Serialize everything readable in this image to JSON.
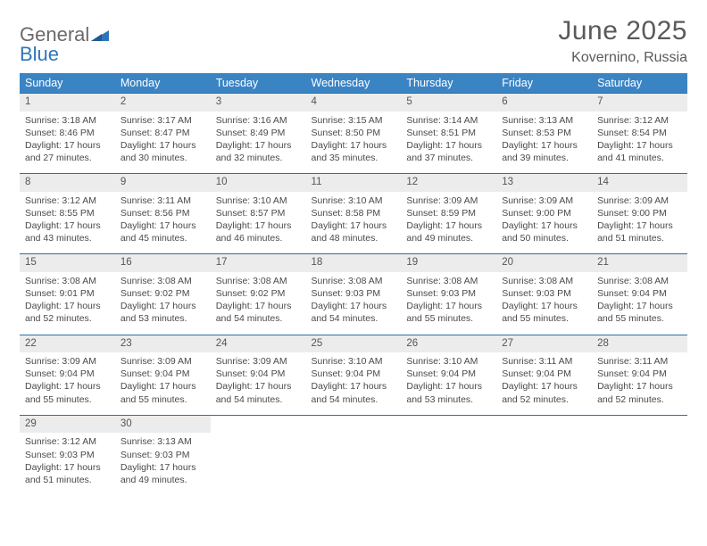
{
  "logo": {
    "line1": "General",
    "line2": "Blue"
  },
  "title": "June 2025",
  "location": "Kovernino, Russia",
  "colors": {
    "header_bg": "#3b84c4",
    "header_text": "#ffffff",
    "daynum_bg": "#ececec",
    "row_border": "#2f6fa8",
    "text": "#4a4a4a",
    "logo_gray": "#6a6a6a",
    "logo_blue": "#2f76b8"
  },
  "weekdays": [
    "Sunday",
    "Monday",
    "Tuesday",
    "Wednesday",
    "Thursday",
    "Friday",
    "Saturday"
  ],
  "weeks": [
    {
      "days": [
        {
          "num": "1",
          "sunrise": "3:18 AM",
          "sunset": "8:46 PM",
          "daylight": "17 hours and 27 minutes."
        },
        {
          "num": "2",
          "sunrise": "3:17 AM",
          "sunset": "8:47 PM",
          "daylight": "17 hours and 30 minutes."
        },
        {
          "num": "3",
          "sunrise": "3:16 AM",
          "sunset": "8:49 PM",
          "daylight": "17 hours and 32 minutes."
        },
        {
          "num": "4",
          "sunrise": "3:15 AM",
          "sunset": "8:50 PM",
          "daylight": "17 hours and 35 minutes."
        },
        {
          "num": "5",
          "sunrise": "3:14 AM",
          "sunset": "8:51 PM",
          "daylight": "17 hours and 37 minutes."
        },
        {
          "num": "6",
          "sunrise": "3:13 AM",
          "sunset": "8:53 PM",
          "daylight": "17 hours and 39 minutes."
        },
        {
          "num": "7",
          "sunrise": "3:12 AM",
          "sunset": "8:54 PM",
          "daylight": "17 hours and 41 minutes."
        }
      ]
    },
    {
      "days": [
        {
          "num": "8",
          "sunrise": "3:12 AM",
          "sunset": "8:55 PM",
          "daylight": "17 hours and 43 minutes."
        },
        {
          "num": "9",
          "sunrise": "3:11 AM",
          "sunset": "8:56 PM",
          "daylight": "17 hours and 45 minutes."
        },
        {
          "num": "10",
          "sunrise": "3:10 AM",
          "sunset": "8:57 PM",
          "daylight": "17 hours and 46 minutes."
        },
        {
          "num": "11",
          "sunrise": "3:10 AM",
          "sunset": "8:58 PM",
          "daylight": "17 hours and 48 minutes."
        },
        {
          "num": "12",
          "sunrise": "3:09 AM",
          "sunset": "8:59 PM",
          "daylight": "17 hours and 49 minutes."
        },
        {
          "num": "13",
          "sunrise": "3:09 AM",
          "sunset": "9:00 PM",
          "daylight": "17 hours and 50 minutes."
        },
        {
          "num": "14",
          "sunrise": "3:09 AM",
          "sunset": "9:00 PM",
          "daylight": "17 hours and 51 minutes."
        }
      ]
    },
    {
      "days": [
        {
          "num": "15",
          "sunrise": "3:08 AM",
          "sunset": "9:01 PM",
          "daylight": "17 hours and 52 minutes."
        },
        {
          "num": "16",
          "sunrise": "3:08 AM",
          "sunset": "9:02 PM",
          "daylight": "17 hours and 53 minutes."
        },
        {
          "num": "17",
          "sunrise": "3:08 AM",
          "sunset": "9:02 PM",
          "daylight": "17 hours and 54 minutes."
        },
        {
          "num": "18",
          "sunrise": "3:08 AM",
          "sunset": "9:03 PM",
          "daylight": "17 hours and 54 minutes."
        },
        {
          "num": "19",
          "sunrise": "3:08 AM",
          "sunset": "9:03 PM",
          "daylight": "17 hours and 55 minutes."
        },
        {
          "num": "20",
          "sunrise": "3:08 AM",
          "sunset": "9:03 PM",
          "daylight": "17 hours and 55 minutes."
        },
        {
          "num": "21",
          "sunrise": "3:08 AM",
          "sunset": "9:04 PM",
          "daylight": "17 hours and 55 minutes."
        }
      ]
    },
    {
      "days": [
        {
          "num": "22",
          "sunrise": "3:09 AM",
          "sunset": "9:04 PM",
          "daylight": "17 hours and 55 minutes."
        },
        {
          "num": "23",
          "sunrise": "3:09 AM",
          "sunset": "9:04 PM",
          "daylight": "17 hours and 55 minutes."
        },
        {
          "num": "24",
          "sunrise": "3:09 AM",
          "sunset": "9:04 PM",
          "daylight": "17 hours and 54 minutes."
        },
        {
          "num": "25",
          "sunrise": "3:10 AM",
          "sunset": "9:04 PM",
          "daylight": "17 hours and 54 minutes."
        },
        {
          "num": "26",
          "sunrise": "3:10 AM",
          "sunset": "9:04 PM",
          "daylight": "17 hours and 53 minutes."
        },
        {
          "num": "27",
          "sunrise": "3:11 AM",
          "sunset": "9:04 PM",
          "daylight": "17 hours and 52 minutes."
        },
        {
          "num": "28",
          "sunrise": "3:11 AM",
          "sunset": "9:04 PM",
          "daylight": "17 hours and 52 minutes."
        }
      ]
    },
    {
      "days": [
        {
          "num": "29",
          "sunrise": "3:12 AM",
          "sunset": "9:03 PM",
          "daylight": "17 hours and 51 minutes."
        },
        {
          "num": "30",
          "sunrise": "3:13 AM",
          "sunset": "9:03 PM",
          "daylight": "17 hours and 49 minutes."
        },
        null,
        null,
        null,
        null,
        null
      ]
    }
  ],
  "labels": {
    "sunrise": "Sunrise: ",
    "sunset": "Sunset: ",
    "daylight": "Daylight: "
  }
}
